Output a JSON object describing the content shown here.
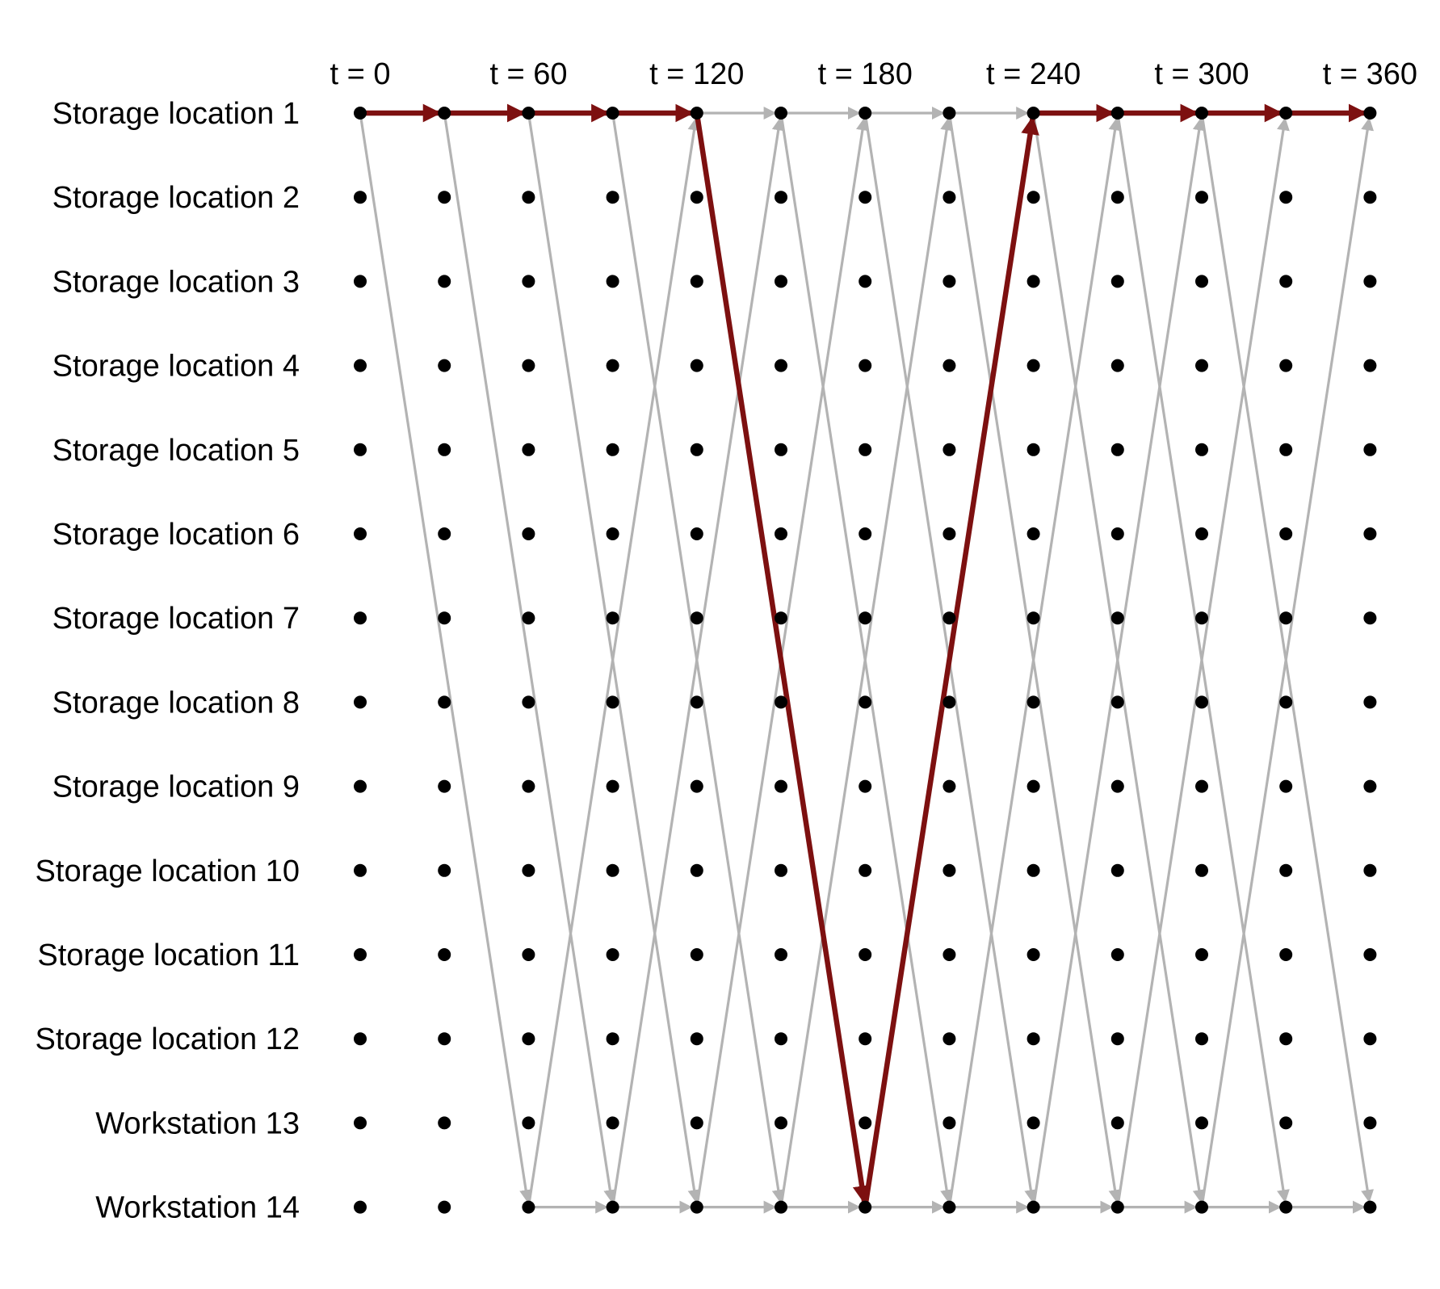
{
  "diagram": {
    "time_labels": [
      "t = 0",
      "t = 60",
      "t = 120",
      "t = 180",
      "t = 240",
      "t = 300",
      "t = 360"
    ],
    "time_steps": 13,
    "row_labels": [
      "Storage location 1",
      "Storage location 2",
      "Storage location 3",
      "Storage location 4",
      "Storage location 5",
      "Storage location 6",
      "Storage location 7",
      "Storage location 8",
      "Storage location 9",
      "Storage location 10",
      "Storage location 11",
      "Storage location 12",
      "Workstation 13",
      "Workstation 14"
    ],
    "grey_arcs": [
      {
        "from": [
          0,
          0
        ],
        "to": [
          2,
          13
        ]
      },
      {
        "from": [
          1,
          0
        ],
        "to": [
          3,
          13
        ]
      },
      {
        "from": [
          2,
          0
        ],
        "to": [
          4,
          13
        ]
      },
      {
        "from": [
          3,
          0
        ],
        "to": [
          5,
          13
        ]
      },
      {
        "from": [
          4,
          0
        ],
        "to": [
          6,
          13
        ]
      },
      {
        "from": [
          5,
          0
        ],
        "to": [
          7,
          13
        ]
      },
      {
        "from": [
          6,
          0
        ],
        "to": [
          8,
          13
        ]
      },
      {
        "from": [
          7,
          0
        ],
        "to": [
          9,
          13
        ]
      },
      {
        "from": [
          8,
          0
        ],
        "to": [
          10,
          13
        ]
      },
      {
        "from": [
          9,
          0
        ],
        "to": [
          11,
          13
        ]
      },
      {
        "from": [
          10,
          0
        ],
        "to": [
          12,
          13
        ]
      },
      {
        "from": [
          2,
          13
        ],
        "to": [
          4,
          0
        ]
      },
      {
        "from": [
          3,
          13
        ],
        "to": [
          5,
          0
        ]
      },
      {
        "from": [
          4,
          13
        ],
        "to": [
          6,
          0
        ]
      },
      {
        "from": [
          5,
          13
        ],
        "to": [
          7,
          0
        ]
      },
      {
        "from": [
          6,
          13
        ],
        "to": [
          8,
          0
        ]
      },
      {
        "from": [
          7,
          13
        ],
        "to": [
          9,
          0
        ]
      },
      {
        "from": [
          8,
          13
        ],
        "to": [
          10,
          0
        ]
      },
      {
        "from": [
          9,
          13
        ],
        "to": [
          11,
          0
        ]
      },
      {
        "from": [
          10,
          13
        ],
        "to": [
          12,
          0
        ]
      },
      {
        "from": [
          0,
          0
        ],
        "to": [
          1,
          0
        ]
      },
      {
        "from": [
          1,
          0
        ],
        "to": [
          2,
          0
        ]
      },
      {
        "from": [
          2,
          0
        ],
        "to": [
          3,
          0
        ]
      },
      {
        "from": [
          3,
          0
        ],
        "to": [
          4,
          0
        ]
      },
      {
        "from": [
          4,
          0
        ],
        "to": [
          5,
          0
        ]
      },
      {
        "from": [
          5,
          0
        ],
        "to": [
          6,
          0
        ]
      },
      {
        "from": [
          6,
          0
        ],
        "to": [
          7,
          0
        ]
      },
      {
        "from": [
          7,
          0
        ],
        "to": [
          8,
          0
        ]
      },
      {
        "from": [
          8,
          0
        ],
        "to": [
          9,
          0
        ]
      },
      {
        "from": [
          9,
          0
        ],
        "to": [
          10,
          0
        ]
      },
      {
        "from": [
          10,
          0
        ],
        "to": [
          11,
          0
        ]
      },
      {
        "from": [
          11,
          0
        ],
        "to": [
          12,
          0
        ]
      },
      {
        "from": [
          2,
          13
        ],
        "to": [
          3,
          13
        ]
      },
      {
        "from": [
          3,
          13
        ],
        "to": [
          4,
          13
        ]
      },
      {
        "from": [
          4,
          13
        ],
        "to": [
          5,
          13
        ]
      },
      {
        "from": [
          5,
          13
        ],
        "to": [
          6,
          13
        ]
      },
      {
        "from": [
          6,
          13
        ],
        "to": [
          7,
          13
        ]
      },
      {
        "from": [
          7,
          13
        ],
        "to": [
          8,
          13
        ]
      },
      {
        "from": [
          8,
          13
        ],
        "to": [
          9,
          13
        ]
      },
      {
        "from": [
          9,
          13
        ],
        "to": [
          10,
          13
        ]
      },
      {
        "from": [
          10,
          13
        ],
        "to": [
          11,
          13
        ]
      },
      {
        "from": [
          11,
          13
        ],
        "to": [
          12,
          13
        ]
      }
    ],
    "highlight_path": [
      [
        0,
        0
      ],
      [
        1,
        0
      ],
      [
        2,
        0
      ],
      [
        3,
        0
      ],
      [
        4,
        0
      ],
      [
        6,
        13
      ],
      [
        8,
        0
      ],
      [
        9,
        0
      ],
      [
        10,
        0
      ],
      [
        11,
        0
      ],
      [
        12,
        0
      ]
    ],
    "colors": {
      "node": "#000000",
      "grey_arc": "#b3b3b3",
      "highlight": "#7d1010",
      "label": "#000000"
    }
  }
}
